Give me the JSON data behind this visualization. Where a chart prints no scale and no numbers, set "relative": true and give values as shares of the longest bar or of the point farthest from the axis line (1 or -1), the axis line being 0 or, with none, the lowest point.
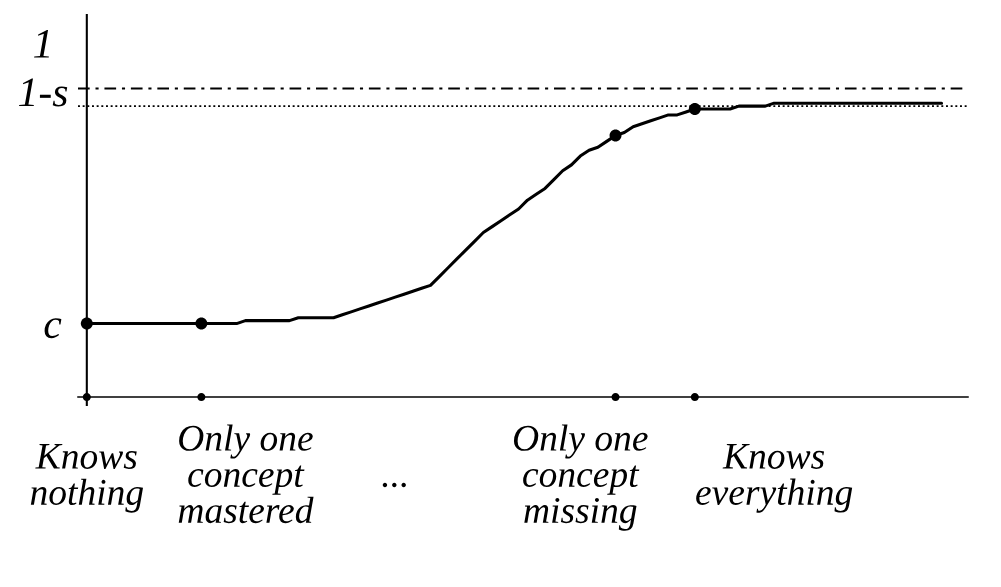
{
  "chart_data": {
    "type": "line",
    "relative": true,
    "categories": [
      "Knows\nnothing",
      null,
      null,
      null,
      null,
      null,
      null,
      null,
      null,
      null,
      null,
      null,
      null,
      null,
      null,
      null,
      null,
      null,
      "Only one\nconcept\nmastered",
      null,
      null,
      null,
      null,
      null,
      null,
      null,
      null,
      null,
      null,
      null,
      null,
      null,
      null,
      null,
      null,
      "...",
      null,
      null,
      null,
      null,
      null,
      null,
      null,
      null,
      null,
      null,
      null,
      null,
      null,
      null,
      null,
      null,
      null,
      null,
      null,
      null,
      "Only one\nconcept\nmissing",
      null,
      null,
      null,
      null,
      null,
      null,
      null,
      null,
      null,
      null,
      null,
      null,
      null,
      null,
      null,
      null,
      null,
      null,
      null,
      null,
      null,
      "Knows\neverything",
      null,
      null,
      null,
      null,
      null,
      null,
      null,
      null,
      null,
      null,
      null,
      null,
      null,
      null,
      null,
      null,
      null,
      null,
      null,
      null,
      null,
      null
    ],
    "series": [
      {
        "color": "#000000",
        "marker": "none",
        "line_style": "solid",
        "values": [
          0.25,
          0.25,
          0.25,
          0.25,
          0.25,
          0.25,
          0.25,
          0.25,
          0.25,
          0.25,
          0.25,
          0.25,
          0.25,
          0.25,
          0.25,
          0.25,
          0.25,
          0.25,
          0.26,
          0.26,
          0.26,
          0.26,
          0.26,
          0.26,
          0.27,
          0.27,
          0.27,
          0.27,
          0.27,
          0.28,
          0.29,
          0.3,
          0.31,
          0.32,
          0.33,
          0.34,
          0.35,
          0.36,
          0.37,
          0.38,
          0.41,
          0.44,
          0.47,
          0.5,
          0.53,
          0.56,
          0.58,
          0.6,
          0.62,
          0.64,
          0.67,
          0.69,
          0.71,
          0.74,
          0.77,
          0.79,
          0.82,
          0.84,
          0.85,
          0.87,
          0.89,
          0.9,
          0.92,
          0.93,
          0.94,
          0.95,
          0.96,
          0.96,
          0.97,
          0.98,
          0.98,
          0.98,
          0.98,
          0.98,
          0.99,
          0.99,
          0.99,
          0.99,
          1.0,
          1.0,
          1.0,
          1.0,
          1.0,
          1.0,
          1.0,
          1.0,
          1.0,
          1.0,
          1.0,
          1.0,
          1.0,
          1.0,
          1.0,
          1.0,
          1.0,
          1.0,
          1.0,
          1.0,
          null,
          null,
          null
        ]
      },
      {
        "type": "scatter",
        "color": "#000000",
        "marker": "circle",
        "values": [
          0.25,
          null,
          null,
          null,
          null,
          null,
          null,
          null,
          null,
          null,
          null,
          null,
          null,
          0.25,
          null,
          null,
          null,
          null,
          null,
          null,
          null,
          null,
          null,
          null,
          null,
          null,
          null,
          null,
          null,
          null,
          null,
          null,
          null,
          null,
          null,
          null,
          null,
          null,
          null,
          null,
          null,
          null,
          null,
          null,
          null,
          null,
          null,
          null,
          null,
          null,
          null,
          null,
          null,
          null,
          null,
          null,
          null,
          null,
          null,
          null,
          0.89,
          null,
          null,
          null,
          null,
          null,
          null,
          null,
          null,
          0.98,
          null,
          null,
          null,
          null,
          null,
          null,
          null,
          null,
          null,
          null,
          null,
          null,
          null,
          null,
          null,
          null,
          null,
          null,
          null,
          null,
          null,
          null,
          null,
          null,
          null,
          null,
          null,
          null,
          null,
          null,
          null
        ]
      },
      {
        "type": "scatter",
        "color": "#000000",
        "marker": "circle",
        "values": [
          0,
          null,
          null,
          null,
          null,
          null,
          null,
          null,
          null,
          null,
          null,
          null,
          null,
          0,
          null,
          null,
          null,
          null,
          null,
          null,
          null,
          null,
          null,
          null,
          null,
          null,
          null,
          null,
          null,
          null,
          null,
          null,
          null,
          null,
          null,
          null,
          null,
          null,
          null,
          null,
          null,
          null,
          null,
          null,
          null,
          null,
          null,
          null,
          null,
          null,
          null,
          null,
          null,
          null,
          null,
          null,
          null,
          null,
          null,
          null,
          0,
          null,
          null,
          null,
          null,
          null,
          null,
          null,
          null,
          0,
          null,
          null,
          null,
          null,
          null,
          null,
          null,
          null,
          null,
          null,
          null,
          null,
          null,
          null,
          null,
          null,
          null,
          null,
          null,
          null,
          null,
          null,
          null,
          null,
          null,
          null,
          null,
          null,
          null,
          null,
          null
        ]
      }
    ],
    "ref_lines": [
      {
        "axis": "y",
        "value": 1.05,
        "label": "1",
        "color": "#000000",
        "line_style": "dashdot"
      },
      {
        "axis": "y",
        "value": 0.99,
        "label": "1-s",
        "color": "#000000",
        "line_style": "dotted"
      }
    ],
    "annotations": [
      {
        "text": "c",
        "x": "Knows\nnothing",
        "y": 0.25
      }
    ]
  }
}
